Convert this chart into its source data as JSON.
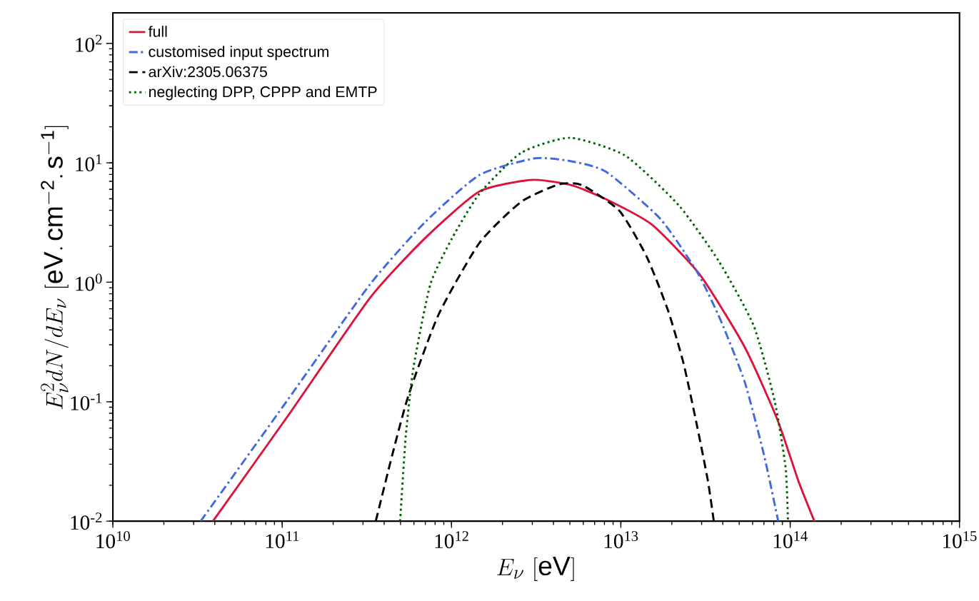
{
  "chart_data": {
    "type": "line",
    "xlabel": "E_\\nu\\ [\\mathrm{eV}]",
    "ylabel": "E_\\nu^2 dN/dE_\\nu\\ [\\mathrm{eV.\\,cm^{-2}.\\,s^{-1}}]",
    "log": "xy",
    "legend": "top left",
    "xlim": [
      10000000000.0,
      1000000000000000.0
    ],
    "ylim": [
      0.01,
      180
    ],
    "xticks": [
      {
        "value": 10000000000.0,
        "label": "10$^{10}$"
      },
      {
        "value": 100000000000.0,
        "label": "10$^{11}$"
      },
      {
        "value": 1000000000000.0,
        "label": "10$^{12}$"
      },
      {
        "value": 10000000000000.0,
        "label": "10$^{13}$"
      },
      {
        "value": 100000000000000.0,
        "label": "10$^{14}$"
      },
      {
        "value": 1000000000000000.0,
        "label": "10$^{15}$"
      }
    ],
    "yticks": [
      {
        "value": 0.01,
        "label": "10$^{-2}$"
      },
      {
        "value": 0.1,
        "label": "10$^{-1}$"
      },
      {
        "value": 1,
        "label": "10$^{0}$"
      },
      {
        "value": 10,
        "label": "10$^{1}$"
      },
      {
        "value": 100,
        "label": "10$^{2}$"
      }
    ],
    "series": [
      {
        "name": "full",
        "color": "#dc143c",
        "line_style": "solid",
        "x": [
          39000000000.0,
          108000000000.0,
          330000000000.0,
          700000000000.0,
          1460000000000.0,
          2970000000000.0,
          5100000000000.0,
          8200000000000.0,
          15200000000000.0,
          29400000000000.0,
          54000000000000.0,
          84000000000000.0,
          112000000000000.0,
          139000000000000.0
        ],
        "values": [
          0.01,
          0.076,
          0.74,
          2.35,
          5.75,
          7.2,
          6.5,
          4.95,
          3.05,
          1.15,
          0.285,
          0.071,
          0.0216,
          0.01
        ]
      },
      {
        "name": "customised input spectrum",
        "color": "#4169e1",
        "line_style": "dashdot",
        "x": [
          33000000000.0,
          108000000000.0,
          330000000000.0,
          700000000000.0,
          1460000000000.0,
          3100000000000.0,
          5100000000000.0,
          8200000000000.0,
          17100000000000.0,
          28300000000000.0,
          39000000000000.0,
          54000000000000.0,
          70000000000000.0,
          85000000000000.0
        ],
        "values": [
          0.01,
          0.104,
          0.96,
          3.2,
          7.9,
          10.9,
          10.3,
          8.4,
          3.4,
          1.21,
          0.475,
          0.145,
          0.036,
          0.01
        ]
      },
      {
        "name": "arXiv:2305.06375",
        "color": "#000000",
        "line_style": "dashed",
        "x": [
          357000000000.0,
          447000000000.0,
          560000000000.0,
          840000000000.0,
          1460000000000.0,
          2570000000000.0,
          4300000000000.0,
          5900000000000.0,
          9800000000000.0,
          14200000000000.0,
          19000000000000.0,
          23500000000000.0,
          28300000000000.0,
          32700000000000.0,
          35400000000000.0
        ],
        "values": [
          0.01,
          0.036,
          0.116,
          0.54,
          2.13,
          4.7,
          6.6,
          6.5,
          3.97,
          1.64,
          0.58,
          0.207,
          0.061,
          0.0216,
          0.01
        ]
      },
      {
        "name": "neglecting DPP, CPPP and EMTP",
        "color": "#006400",
        "line_style": "dotted",
        "x": [
          497000000000.0,
          537000000000.0,
          597000000000.0,
          750000000000.0,
          1010000000000.0,
          1460000000000.0,
          2570000000000.0,
          5000000000000.0,
          10600000000000.0,
          22000000000000.0,
          38000000000000.0,
          61000000000000.0,
          81000000000000.0,
          94000000000000.0,
          97000000000000.0
        ],
        "values": [
          0.01,
          0.052,
          0.196,
          0.96,
          2.35,
          5.5,
          12.1,
          16.2,
          11.5,
          4.4,
          1.49,
          0.43,
          0.101,
          0.028,
          0.01
        ]
      }
    ]
  }
}
